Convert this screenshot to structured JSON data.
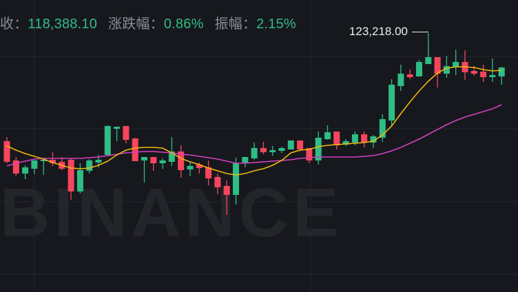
{
  "header": {
    "close_label": "收：",
    "close_value": "118,388.10",
    "change_label": "涨跌幅：",
    "change_value": "0.86%",
    "amplitude_label": "振幅：",
    "amplitude_value": "2.15%"
  },
  "watermark": "BINANCE",
  "colors": {
    "background": "#17181d",
    "grid": "#23262c",
    "up": "#2ebd85",
    "down": "#f6465d",
    "ma_short": "#f0b90b",
    "ma_long": "#d63fc4",
    "label_gray": "#848e9c"
  },
  "chart_data": {
    "type": "candlestick",
    "title": "",
    "max_label": "123,218.00",
    "ylim": [
      111938,
      124658
    ],
    "grid": true,
    "candles_ohlc": [
      [
        118508,
        118688,
        117548,
        117608
      ],
      [
        117668,
        117818,
        117008,
        117098
      ],
      [
        117098,
        117458,
        116858,
        117368
      ],
      [
        117308,
        117698,
        117068,
        117668
      ],
      [
        117638,
        117758,
        117038,
        117698
      ],
      [
        117698,
        118028,
        117428,
        117548
      ],
      [
        117608,
        117818,
        117248,
        117308
      ],
      [
        117698,
        117758,
        115958,
        116318
      ],
      [
        116318,
        117548,
        116228,
        117248
      ],
      [
        117218,
        117728,
        117098,
        117668
      ],
      [
        117578,
        117908,
        117368,
        117698
      ],
      [
        117908,
        119198,
        117878,
        119168
      ],
      [
        119048,
        119138,
        118508,
        119138
      ],
      [
        119168,
        119168,
        118418,
        118568
      ],
      [
        118628,
        118658,
        117638,
        117638
      ],
      [
        117668,
        117818,
        116708,
        117818
      ],
      [
        117818,
        117818,
        117218,
        117548
      ],
      [
        117548,
        117758,
        117308,
        117668
      ],
      [
        117608,
        118688,
        117428,
        118058
      ],
      [
        118058,
        118328,
        116918,
        117248
      ],
      [
        117278,
        117578,
        116978,
        117428
      ],
      [
        117488,
        117578,
        117098,
        117338
      ],
      [
        117368,
        117668,
        116588,
        116888
      ],
      [
        116948,
        117098,
        116198,
        116498
      ],
      [
        116558,
        116798,
        115298,
        116168
      ],
      [
        116168,
        117788,
        115748,
        117548
      ],
      [
        117578,
        117818,
        117368,
        117818
      ],
      [
        117758,
        118448,
        117698,
        118208
      ],
      [
        118208,
        118478,
        117938,
        118028
      ],
      [
        118028,
        118298,
        117878,
        118118
      ],
      [
        118088,
        118268,
        117998,
        118208
      ],
      [
        118148,
        118538,
        118148,
        118538
      ],
      [
        118538,
        118538,
        118058,
        118148
      ],
      [
        118208,
        118208,
        117548,
        117668
      ],
      [
        117668,
        118928,
        117488,
        118658
      ],
      [
        118598,
        119198,
        118568,
        118898
      ],
      [
        118928,
        118928,
        118148,
        118328
      ],
      [
        118358,
        118598,
        118298,
        118508
      ],
      [
        118448,
        118928,
        118328,
        118808
      ],
      [
        118808,
        118928,
        118238,
        118448
      ],
      [
        118448,
        118778,
        118208,
        118718
      ],
      [
        118658,
        119678,
        118478,
        119468
      ],
      [
        119408,
        121208,
        119168,
        120968
      ],
      [
        120908,
        121838,
        120698,
        121448
      ],
      [
        121418,
        121628,
        121208,
        121298
      ],
      [
        121328,
        122048,
        121328,
        121958
      ],
      [
        121868,
        123218,
        121868,
        122168
      ],
      [
        122168,
        122168,
        120848,
        121448
      ],
      [
        121448,
        122228,
        121268,
        121778
      ],
      [
        121748,
        122498,
        121388,
        121958
      ],
      [
        121958,
        122468,
        121178,
        121508
      ],
      [
        121568,
        121778,
        121358,
        121448
      ],
      [
        121538,
        121838,
        121088,
        121298
      ],
      [
        121298,
        122108,
        121088,
        121388
      ],
      [
        121328,
        121748,
        120968,
        121718
      ]
    ],
    "ma_short": [
      118298,
      118118,
      117968,
      117848,
      117728,
      117578,
      117458,
      117338,
      117308,
      117338,
      117458,
      117638,
      117908,
      118118,
      118208,
      118238,
      118238,
      118208,
      117998,
      117758,
      117608,
      117488,
      117338,
      117218,
      117098,
      117038,
      117098,
      117218,
      117308,
      117458,
      117668,
      117998,
      118118,
      118148,
      118268,
      118328,
      118358,
      118388,
      118418,
      118448,
      118508,
      118778,
      119168,
      119708,
      120218,
      120698,
      121118,
      121478,
      121688,
      121748,
      121748,
      121718,
      121628,
      121568,
      121598
    ],
    "ma_long": [
      117428,
      117548,
      117638,
      117728,
      117758,
      117758,
      117758,
      117758,
      117758,
      117788,
      117818,
      117878,
      117938,
      117998,
      118028,
      118058,
      118058,
      118028,
      117998,
      117938,
      117908,
      117848,
      117788,
      117728,
      117638,
      117548,
      117548,
      117578,
      117608,
      117638,
      117668,
      117698,
      117758,
      117788,
      117818,
      117818,
      117818,
      117818,
      117818,
      117848,
      117878,
      117968,
      118088,
      118238,
      118418,
      118598,
      118808,
      119018,
      119228,
      119408,
      119558,
      119678,
      119798,
      119918,
      120098
    ]
  }
}
